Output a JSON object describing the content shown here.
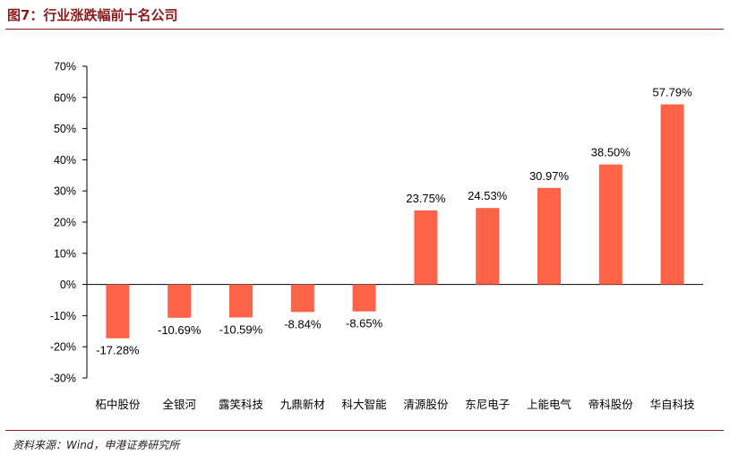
{
  "header": {
    "title": "图7：行业涨跌幅前十名公司"
  },
  "footer": {
    "source": "资料来源：Wind，申港证券研究所"
  },
  "colors": {
    "bar": "#ff6347",
    "accent": "#8b1a1a",
    "axis": "#000000"
  },
  "chart_data": {
    "type": "bar",
    "title": "",
    "xlabel": "",
    "ylabel": "",
    "categories": [
      "柘中股份",
      "全银河",
      "露笑科技",
      "九鼎新材",
      "科大智能",
      "清源股份",
      "东尼电子",
      "上能电气",
      "帝科股份",
      "华自科技"
    ],
    "values": [
      -17.28,
      -10.69,
      -10.59,
      -8.84,
      -8.65,
      23.75,
      24.53,
      30.97,
      38.5,
      57.79
    ],
    "data_labels": [
      "-17.28%",
      "-10.69%",
      "-10.59%",
      "-8.84%",
      "-8.65%",
      "23.75%",
      "24.53%",
      "30.97%",
      "38.50%",
      "57.79%"
    ],
    "ylim": [
      -30,
      70
    ],
    "yticks": [
      -30,
      -20,
      -10,
      0,
      10,
      20,
      30,
      40,
      50,
      60,
      70
    ],
    "ytick_labels": [
      "-30%",
      "-20%",
      "-10%",
      "0%",
      "10%",
      "20%",
      "30%",
      "40%",
      "50%",
      "60%",
      "70%"
    ],
    "grid": false,
    "legend": "none"
  }
}
